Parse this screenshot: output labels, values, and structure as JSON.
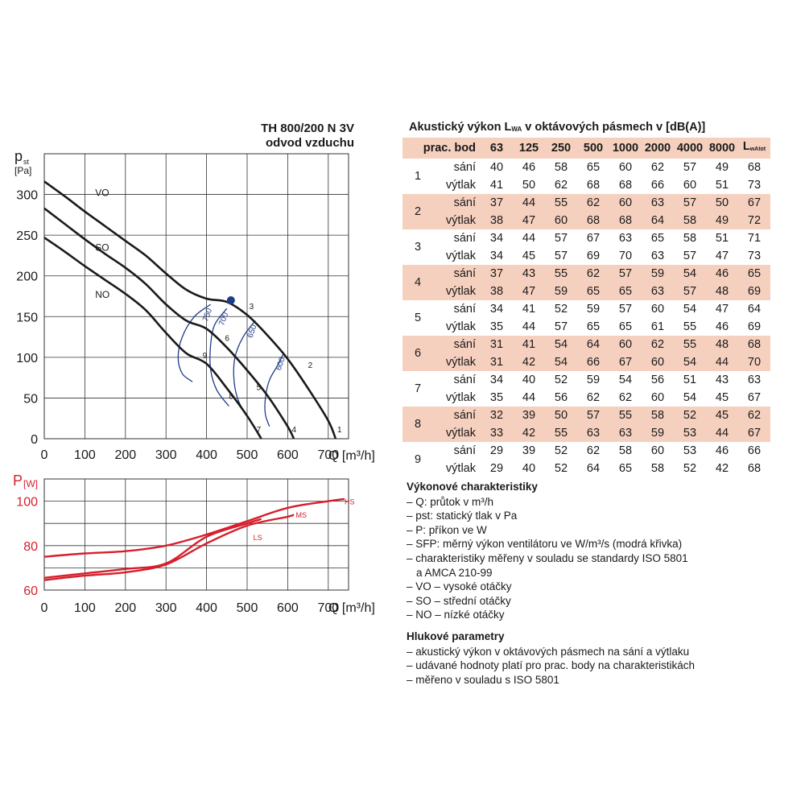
{
  "chart_title": [
    "TH 800/200 N 3V",
    "odvod vzduchu"
  ],
  "chart_data": [
    {
      "type": "line",
      "title": "TH 800/200 N 3V odvod vzduchu",
      "ylabel": "p",
      "ylabel_sub": "st",
      "yunit": "[Pa]",
      "xlabel": "Q [m³/h]",
      "xlim": [
        0,
        750
      ],
      "ylim": [
        0,
        350
      ],
      "xticks": [
        0,
        100,
        200,
        300,
        400,
        500,
        600,
        700
      ],
      "yticks": [
        0,
        50,
        100,
        150,
        200,
        250,
        300
      ],
      "grid": true,
      "series": [
        {
          "name": "VO",
          "color": "#1a1a1a",
          "x": [
            0,
            50,
            100,
            150,
            200,
            250,
            300,
            350,
            400,
            450,
            500,
            550,
            600,
            650,
            700,
            718
          ],
          "y": [
            316,
            298,
            279,
            261,
            243,
            225,
            203,
            183,
            172,
            168,
            152,
            127,
            98,
            62,
            22,
            0
          ]
        },
        {
          "name": "SO",
          "color": "#1a1a1a",
          "x": [
            0,
            50,
            100,
            150,
            200,
            250,
            300,
            350,
            400,
            450,
            500,
            550,
            600,
            615
          ],
          "y": [
            283,
            264,
            245,
            227,
            210,
            190,
            165,
            145,
            135,
            112,
            84,
            53,
            15,
            0
          ]
        },
        {
          "name": "NO",
          "color": "#1a1a1a",
          "x": [
            0,
            50,
            100,
            150,
            200,
            250,
            300,
            350,
            400,
            450,
            500,
            535
          ],
          "y": [
            247,
            230,
            212,
            195,
            178,
            158,
            130,
            105,
            92,
            62,
            28,
            0
          ]
        }
      ],
      "sfp_curves": [
        {
          "label": "750",
          "color": "#1f3c88",
          "x": [
            410,
            370,
            340,
            330,
            340,
            365
          ],
          "y": [
            165,
            150,
            125,
            100,
            80,
            70
          ]
        },
        {
          "label": "700",
          "color": "#1f3c88",
          "x": [
            450,
            420,
            410,
            410,
            425,
            455
          ],
          "y": [
            160,
            140,
            115,
            85,
            60,
            40
          ]
        },
        {
          "label": "650",
          "color": "#1f3c88",
          "x": [
            520,
            490,
            470,
            468,
            480,
            510
          ],
          "y": [
            145,
            125,
            100,
            70,
            45,
            20
          ]
        },
        {
          "label": "600",
          "color": "#1f3c88",
          "x": [
            590,
            575,
            555,
            545,
            545,
            555
          ],
          "y": [
            105,
            90,
            72,
            50,
            30,
            15
          ]
        }
      ],
      "operating_point": {
        "x": 460,
        "y": 170,
        "color": "#1f3c88"
      },
      "point_labels": [
        {
          "label": "1",
          "x": 742,
          "y": 6
        },
        {
          "label": "2",
          "x": 670,
          "y": 85
        },
        {
          "label": "3",
          "x": 525,
          "y": 157
        },
        {
          "label": "4",
          "x": 630,
          "y": 6
        },
        {
          "label": "5",
          "x": 543,
          "y": 58
        },
        {
          "label": "6",
          "x": 465,
          "y": 118
        },
        {
          "label": "7",
          "x": 543,
          "y": 6
        },
        {
          "label": "8",
          "x": 475,
          "y": 47
        },
        {
          "label": "9",
          "x": 410,
          "y": 97
        }
      ],
      "curve_labels": [
        {
          "label": "VO",
          "x": 175,
          "y": 303
        },
        {
          "label": "SO",
          "x": 175,
          "y": 236
        },
        {
          "label": "NO",
          "x": 175,
          "y": 178
        }
      ]
    },
    {
      "type": "line",
      "ylabel": "P",
      "yunit": "[W]",
      "xlabel": "Q [m³/h]",
      "xlim": [
        0,
        750
      ],
      "ylim": [
        60,
        110
      ],
      "xticks": [
        0,
        100,
        200,
        300,
        400,
        500,
        600,
        700
      ],
      "yticks": [
        60,
        80,
        100
      ],
      "grid": true,
      "series": [
        {
          "name": "HS",
          "color": "#d61f2c",
          "x": [
            0,
            100,
            200,
            300,
            400,
            500,
            600,
            700,
            740
          ],
          "y": [
            75,
            76.5,
            77.5,
            80,
            85,
            91,
            97,
            100,
            101
          ]
        },
        {
          "name": "MS",
          "color": "#d61f2c",
          "x": [
            0,
            100,
            200,
            300,
            400,
            500,
            600,
            615
          ],
          "y": [
            64.5,
            66.5,
            68,
            71.5,
            81,
            89,
            93,
            94
          ]
        },
        {
          "name": "LS",
          "color": "#d61f2c",
          "x": [
            0,
            100,
            200,
            300,
            400,
            500,
            535
          ],
          "y": [
            65.5,
            67.5,
            69.5,
            72,
            84,
            90,
            92
          ]
        }
      ],
      "series_labels": [
        {
          "label": "HS",
          "x": 760,
          "y": 100
        },
        {
          "label": "MS",
          "x": 640,
          "y": 94
        },
        {
          "label": "LS",
          "x": 535,
          "y": 84
        }
      ]
    },
    {
      "type": "table",
      "title": "Akustický výkon L",
      "title_sub": "WA",
      "title_rest": " v oktávových pásmech v [dB(A)]",
      "header_first": "prac. bod",
      "columns": [
        "63",
        "125",
        "250",
        "500",
        "1000",
        "2000",
        "4000",
        "8000"
      ],
      "total_label": "L",
      "total_sub": "wAtot",
      "side_labels": [
        "sání",
        "výtlak"
      ],
      "rows": [
        {
          "point": "1",
          "sani": [
            "40",
            "46",
            "58",
            "65",
            "60",
            "62",
            "57",
            "49",
            "68"
          ],
          "vytlak": [
            "41",
            "50",
            "62",
            "68",
            "68",
            "66",
            "60",
            "51",
            "73"
          ]
        },
        {
          "point": "2",
          "sani": [
            "37",
            "44",
            "55",
            "62",
            "60",
            "63",
            "57",
            "50",
            "67"
          ],
          "vytlak": [
            "38",
            "47",
            "60",
            "68",
            "68",
            "64",
            "58",
            "49",
            "72"
          ]
        },
        {
          "point": "3",
          "sani": [
            "34",
            "44",
            "57",
            "67",
            "63",
            "65",
            "58",
            "51",
            "71"
          ],
          "vytlak": [
            "34",
            "45",
            "57",
            "69",
            "70",
            "63",
            "57",
            "47",
            "73"
          ]
        },
        {
          "point": "4",
          "sani": [
            "37",
            "43",
            "55",
            "62",
            "57",
            "59",
            "54",
            "46",
            "65"
          ],
          "vytlak": [
            "38",
            "47",
            "59",
            "65",
            "65",
            "63",
            "57",
            "48",
            "69"
          ]
        },
        {
          "point": "5",
          "sani": [
            "34",
            "41",
            "52",
            "59",
            "57",
            "60",
            "54",
            "47",
            "64"
          ],
          "vytlak": [
            "35",
            "44",
            "57",
            "65",
            "65",
            "61",
            "55",
            "46",
            "69"
          ]
        },
        {
          "point": "6",
          "sani": [
            "31",
            "41",
            "54",
            "64",
            "60",
            "62",
            "55",
            "48",
            "68"
          ],
          "vytlak": [
            "31",
            "42",
            "54",
            "66",
            "67",
            "60",
            "54",
            "44",
            "70"
          ]
        },
        {
          "point": "7",
          "sani": [
            "34",
            "40",
            "52",
            "59",
            "54",
            "56",
            "51",
            "43",
            "63"
          ],
          "vytlak": [
            "35",
            "44",
            "56",
            "62",
            "62",
            "60",
            "54",
            "45",
            "67"
          ]
        },
        {
          "point": "8",
          "sani": [
            "32",
            "39",
            "50",
            "57",
            "55",
            "58",
            "52",
            "45",
            "62"
          ],
          "vytlak": [
            "33",
            "42",
            "55",
            "63",
            "63",
            "59",
            "53",
            "44",
            "67"
          ]
        },
        {
          "point": "9",
          "sani": [
            "29",
            "39",
            "52",
            "62",
            "58",
            "60",
            "53",
            "46",
            "66"
          ],
          "vytlak": [
            "29",
            "40",
            "52",
            "64",
            "65",
            "58",
            "52",
            "42",
            "68"
          ]
        }
      ]
    }
  ],
  "notes": {
    "performance_title": "Výkonové charakteristiky",
    "performance_items": [
      "– Q: průtok v m³/h",
      "– pst: statický tlak v Pa",
      "– P: příkon ve W",
      "– SFP: měrný výkon ventilátoru ve W/m³/s (modrá křivka)",
      "– charakteristiky měřeny v souladu se standardy ISO 5801",
      "a AMCA 210-99",
      "– VO – vysoké otáčky",
      "– SO – střední otáčky",
      "– NO – nízké otáčky"
    ],
    "noise_title": "Hlukové parametry",
    "noise_items": [
      "– akustický výkon v oktávových pásmech na sání a výtlaku",
      "– udávané hodnoty platí pro prac. body na charakteristikách",
      "– měřeno v souladu s ISO 5801"
    ]
  }
}
